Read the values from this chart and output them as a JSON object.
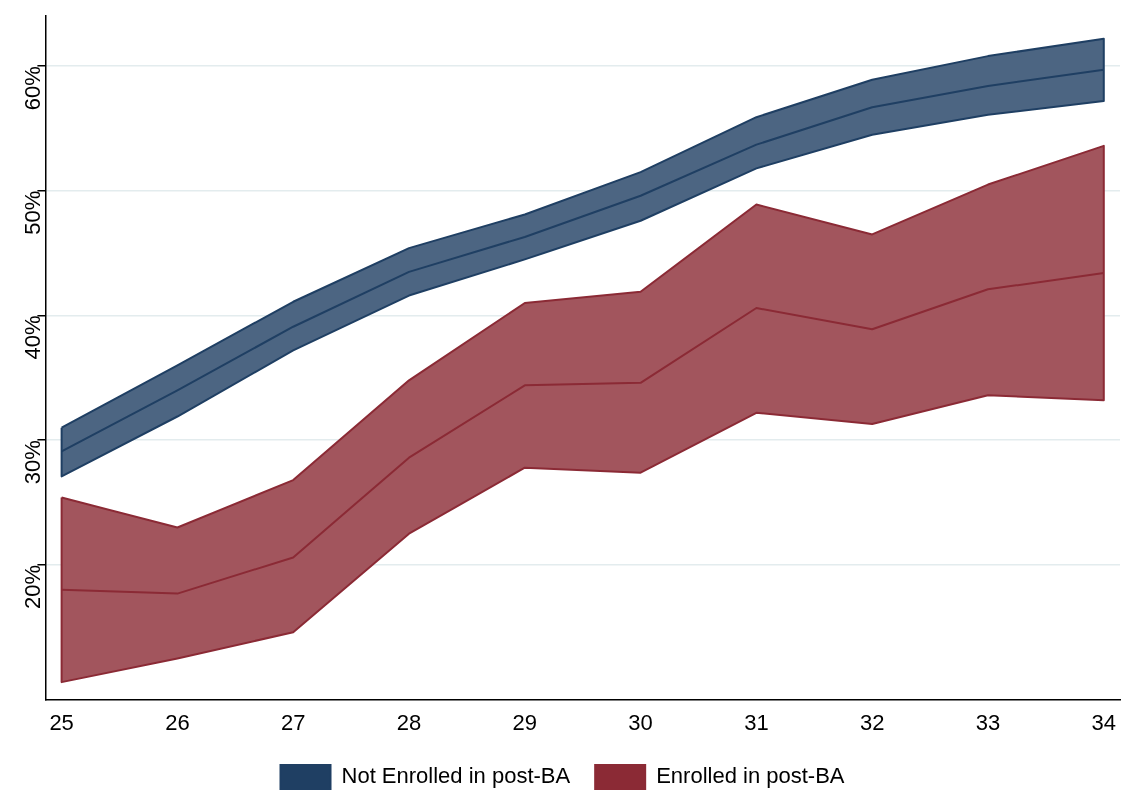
{
  "chart_data": {
    "type": "line",
    "x": [
      25,
      26,
      27,
      28,
      29,
      30,
      31,
      32,
      33,
      34
    ],
    "xlim": [
      24.86,
      34.14
    ],
    "xticks": [
      25,
      26,
      27,
      28,
      29,
      30,
      31,
      32,
      33,
      34
    ],
    "ylim": [
      9.2,
      64
    ],
    "yticks": [
      {
        "value": 20,
        "label": "20%"
      },
      {
        "value": 30,
        "label": "30%"
      },
      {
        "value": 40,
        "label": "40%"
      },
      {
        "value": 50,
        "label": "50%"
      },
      {
        "value": 60,
        "label": "60%"
      }
    ],
    "grid": "y",
    "legend": "bottom",
    "marker": "none",
    "line_style": "solid",
    "series": [
      {
        "name": "Not Enrolled in post-BA",
        "color": "#1f3f63",
        "values": [
          29.1,
          34.0,
          39.1,
          43.5,
          46.3,
          49.6,
          53.7,
          56.7,
          58.4,
          59.7
        ],
        "lower": [
          27.1,
          31.9,
          37.2,
          41.6,
          44.5,
          47.6,
          51.8,
          54.5,
          56.1,
          57.2
        ],
        "upper": [
          31.0,
          36.0,
          41.1,
          45.4,
          48.1,
          51.5,
          55.9,
          58.9,
          60.8,
          62.2
        ]
      },
      {
        "name": "Enrolled in post-BA",
        "color": "#8b2a35",
        "values": [
          18.0,
          17.7,
          20.6,
          28.6,
          34.4,
          34.6,
          40.6,
          38.9,
          42.1,
          43.4
        ],
        "lower": [
          10.6,
          12.5,
          14.6,
          22.5,
          27.8,
          27.4,
          32.2,
          31.3,
          33.6,
          33.2
        ],
        "upper": [
          25.4,
          23.0,
          26.8,
          34.8,
          41.0,
          41.9,
          48.9,
          46.5,
          50.5,
          53.6
        ]
      }
    ]
  }
}
